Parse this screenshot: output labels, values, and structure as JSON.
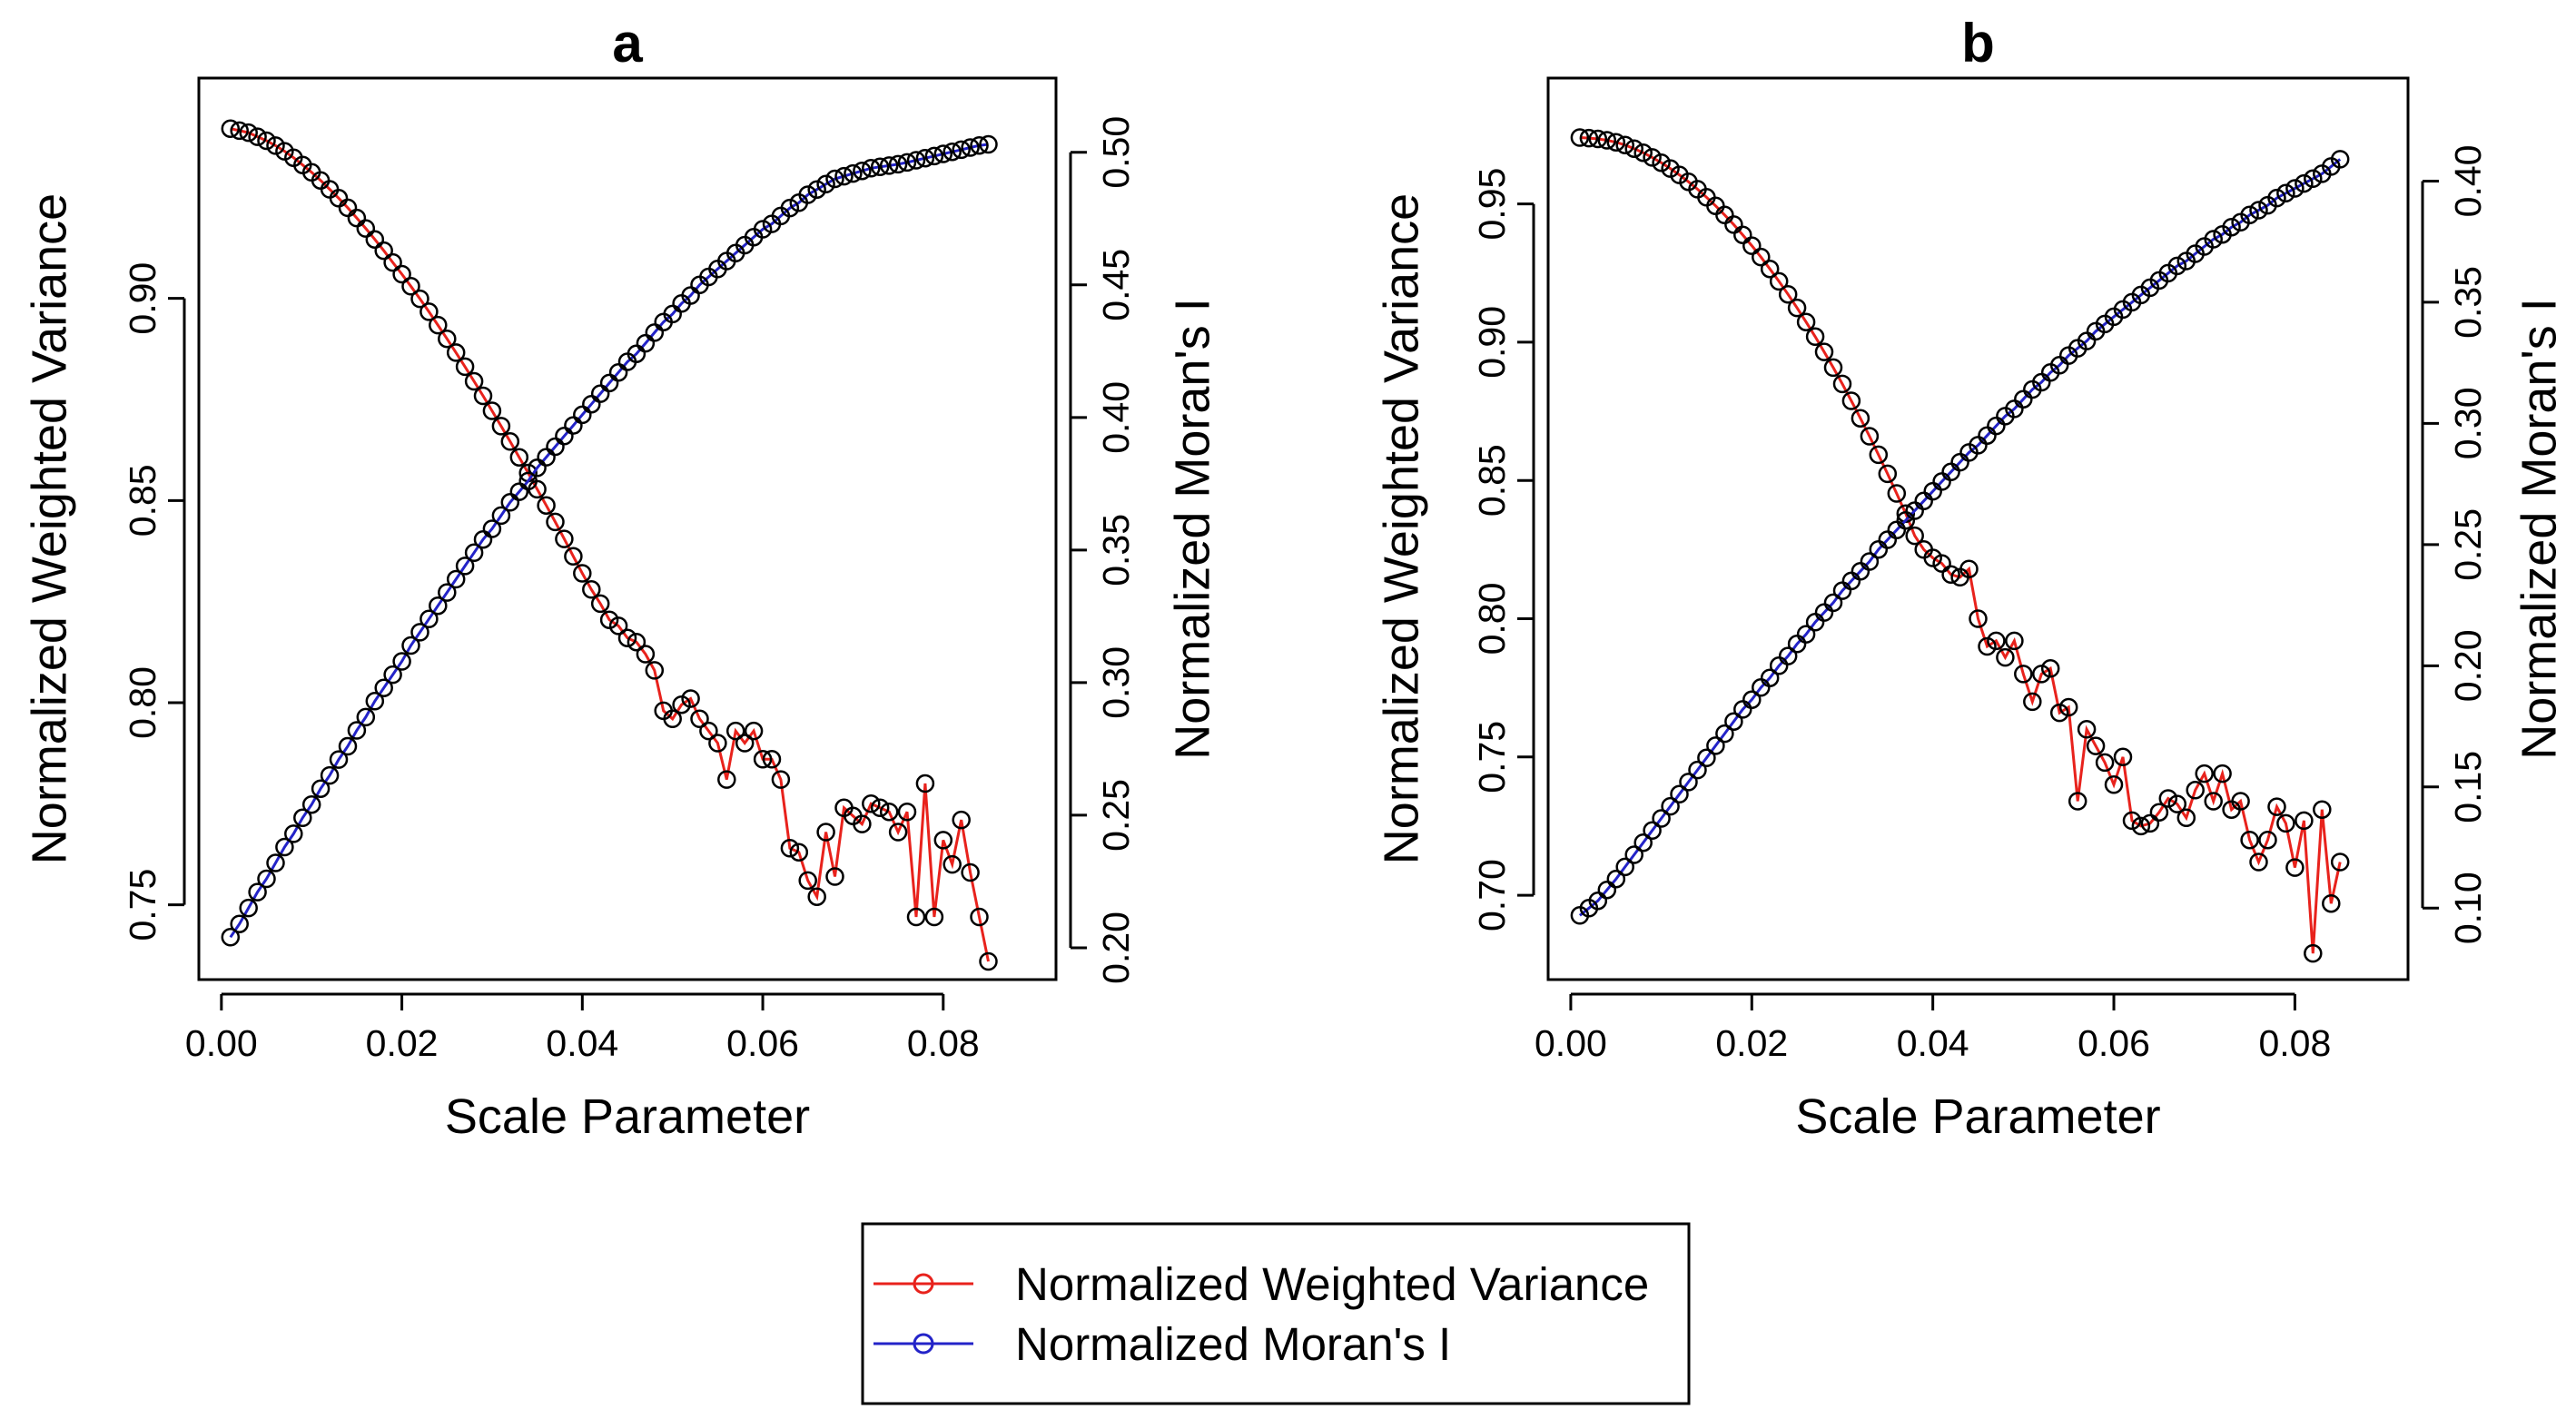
{
  "legend": {
    "entries": [
      {
        "label": "Normalized Weighted Variance",
        "color": "#e8221c"
      },
      {
        "label": "Normalized Moran's I",
        "color": "#2323c8"
      }
    ]
  },
  "colors": {
    "variance": "#e8221c",
    "moran": "#2323c8",
    "markers": "#000000"
  },
  "chart_data": [
    {
      "type": "line",
      "title": "a",
      "xlabel": "Scale Parameter",
      "ylabel": "Normalized Weighted Variance",
      "y2label": "Normalized Moran's I",
      "xlim": [
        -0.0025,
        0.0925
      ],
      "ylim": [
        0.7315,
        0.9545
      ],
      "y2lim": [
        0.188,
        0.528
      ],
      "xticks": [
        "0.00",
        "0.02",
        "0.04",
        "0.06",
        "0.08"
      ],
      "yticks": [
        "0.75",
        "0.80",
        "0.85",
        "0.90"
      ],
      "y2ticks": [
        "0.20",
        "0.25",
        "0.30",
        "0.35",
        "0.40",
        "0.45",
        "0.50"
      ],
      "x_start": 0.001,
      "x_step": 0.001,
      "series": [
        {
          "name": "Normalized Weighted Variance",
          "axis": "left",
          "values": [
            0.942,
            0.9415,
            0.941,
            0.94,
            0.939,
            0.9378,
            0.9364,
            0.9348,
            0.933,
            0.9312,
            0.9292,
            0.927,
            0.9248,
            0.9224,
            0.9199,
            0.9173,
            0.9146,
            0.9118,
            0.9089,
            0.906,
            0.903,
            0.8999,
            0.8967,
            0.8934,
            0.89,
            0.8866,
            0.8831,
            0.8795,
            0.8759,
            0.8722,
            0.8684,
            0.8646,
            0.8607,
            0.8568,
            0.8528,
            0.8488,
            0.8447,
            0.8405,
            0.8362,
            0.832,
            0.828,
            0.8245,
            0.8205,
            0.819,
            0.816,
            0.815,
            0.812,
            0.808,
            0.798,
            0.796,
            0.7995,
            0.801,
            0.796,
            0.793,
            0.79,
            0.781,
            0.793,
            0.79,
            0.793,
            0.786,
            0.786,
            0.781,
            0.764,
            0.763,
            0.756,
            0.752,
            0.768,
            0.757,
            0.774,
            0.772,
            0.77,
            0.775,
            0.774,
            0.773,
            0.768,
            0.773,
            0.747,
            0.78,
            0.747,
            0.766,
            0.76,
            0.771,
            0.758,
            0.747,
            0.736
          ]
        },
        {
          "name": "Normalized Moran's I",
          "axis": "right",
          "values": [
            0.204,
            0.209,
            0.215,
            0.221,
            0.226,
            0.232,
            0.238,
            0.243,
            0.249,
            0.254,
            0.26,
            0.265,
            0.271,
            0.276,
            0.282,
            0.287,
            0.293,
            0.298,
            0.303,
            0.308,
            0.314,
            0.319,
            0.324,
            0.329,
            0.334,
            0.339,
            0.344,
            0.349,
            0.354,
            0.358,
            0.363,
            0.368,
            0.372,
            0.376,
            0.381,
            0.385,
            0.389,
            0.393,
            0.397,
            0.401,
            0.405,
            0.409,
            0.413,
            0.417,
            0.421,
            0.424,
            0.428,
            0.432,
            0.436,
            0.439,
            0.443,
            0.446,
            0.45,
            0.453,
            0.456,
            0.459,
            0.462,
            0.465,
            0.468,
            0.471,
            0.473,
            0.476,
            0.479,
            0.481,
            0.484,
            0.486,
            0.488,
            0.49,
            0.491,
            0.492,
            0.493,
            0.494,
            0.4945,
            0.495,
            0.4955,
            0.4962,
            0.497,
            0.4978,
            0.4986,
            0.4994,
            0.5002,
            0.501,
            0.5018,
            0.5026,
            0.503
          ]
        }
      ]
    },
    {
      "type": "line",
      "title": "b",
      "xlabel": "Scale Parameter",
      "ylabel": "Normalized Weighted Variance",
      "y2label": "Normalized Moran's I",
      "xlim": [
        -0.0025,
        0.0925
      ],
      "ylim": [
        0.6695,
        0.9955
      ],
      "y2lim": [
        0.0705,
        0.4425
      ],
      "xticks": [
        "0.00",
        "0.02",
        "0.04",
        "0.06",
        "0.08"
      ],
      "yticks": [
        "0.70",
        "0.75",
        "0.80",
        "0.85",
        "0.90",
        "0.95"
      ],
      "y2ticks": [
        "0.10",
        "0.15",
        "0.20",
        "0.25",
        "0.30",
        "0.35",
        "0.40"
      ],
      "x_start": 0.001,
      "x_step": 0.001,
      "series": [
        {
          "name": "Normalized Weighted Variance",
          "axis": "left",
          "values": [
            0.974,
            0.9738,
            0.9735,
            0.973,
            0.9723,
            0.9713,
            0.97,
            0.9685,
            0.9668,
            0.9649,
            0.9628,
            0.9605,
            0.958,
            0.9553,
            0.9524,
            0.9493,
            0.946,
            0.9425,
            0.9388,
            0.9349,
            0.9308,
            0.9265,
            0.922,
            0.9173,
            0.9124,
            0.9073,
            0.902,
            0.8965,
            0.8908,
            0.8849,
            0.8788,
            0.8725,
            0.866,
            0.8593,
            0.8524,
            0.8453,
            0.838,
            0.83,
            0.825,
            0.822,
            0.82,
            0.816,
            0.815,
            0.818,
            0.8,
            0.79,
            0.792,
            0.786,
            0.792,
            0.78,
            0.77,
            0.78,
            0.782,
            0.766,
            0.768,
            0.734,
            0.76,
            0.754,
            0.748,
            0.74,
            0.75,
            0.727,
            0.725,
            0.726,
            0.73,
            0.735,
            0.733,
            0.728,
            0.738,
            0.744,
            0.734,
            0.744,
            0.731,
            0.734,
            0.72,
            0.712,
            0.72,
            0.732,
            0.726,
            0.71,
            0.727,
            0.679,
            0.731,
            0.697,
            0.712
          ]
        },
        {
          "name": "Normalized Moran's I",
          "axis": "right",
          "values": [
            0.097,
            0.1,
            0.103,
            0.1075,
            0.112,
            0.117,
            0.122,
            0.127,
            0.132,
            0.137,
            0.142,
            0.147,
            0.152,
            0.157,
            0.162,
            0.167,
            0.172,
            0.177,
            0.182,
            0.186,
            0.191,
            0.195,
            0.2,
            0.204,
            0.209,
            0.213,
            0.218,
            0.222,
            0.226,
            0.231,
            0.235,
            0.239,
            0.243,
            0.248,
            0.252,
            0.256,
            0.26,
            0.264,
            0.268,
            0.272,
            0.276,
            0.28,
            0.284,
            0.288,
            0.291,
            0.295,
            0.299,
            0.303,
            0.306,
            0.31,
            0.314,
            0.317,
            0.321,
            0.324,
            0.328,
            0.331,
            0.334,
            0.338,
            0.341,
            0.344,
            0.347,
            0.35,
            0.353,
            0.356,
            0.359,
            0.362,
            0.365,
            0.367,
            0.37,
            0.373,
            0.376,
            0.378,
            0.381,
            0.383,
            0.386,
            0.388,
            0.39,
            0.393,
            0.395,
            0.397,
            0.399,
            0.401,
            0.403,
            0.406,
            0.409
          ]
        }
      ]
    }
  ]
}
